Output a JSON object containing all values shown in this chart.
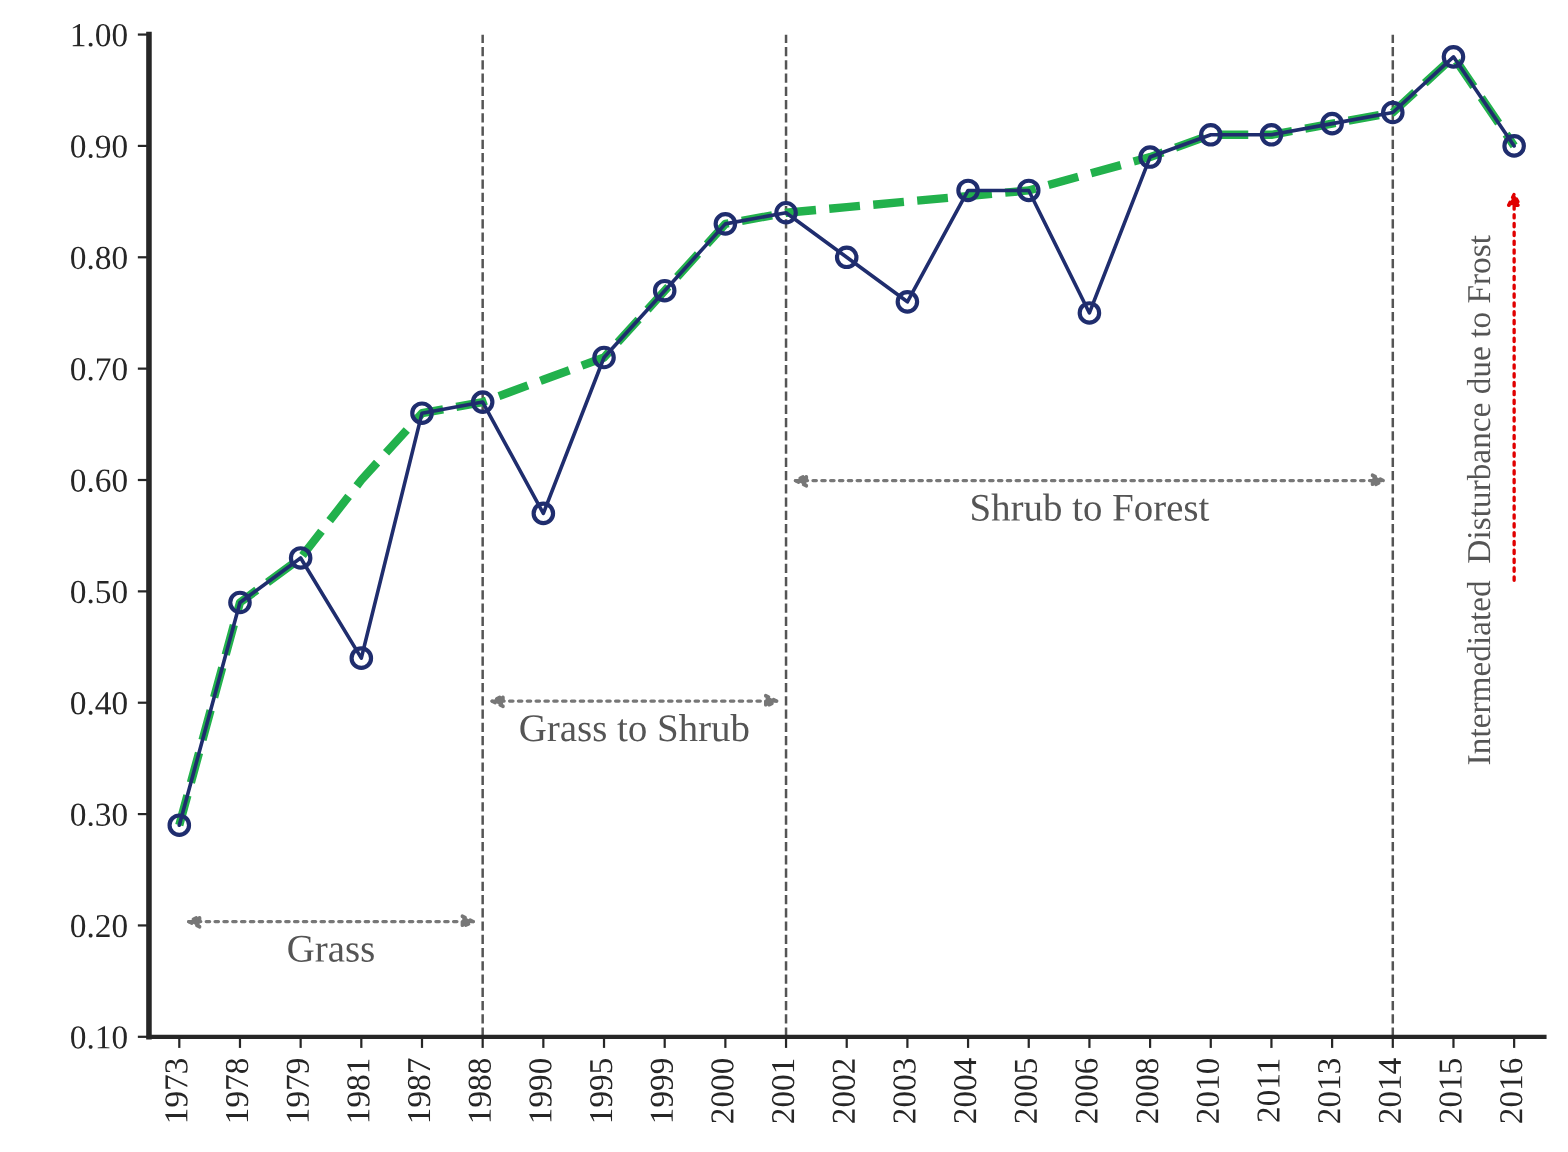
{
  "chart_data": {
    "type": "line",
    "categories": [
      "1973",
      "1978",
      "1979",
      "1981",
      "1987",
      "1988",
      "1990",
      "1995",
      "1999",
      "2000",
      "2001",
      "2002",
      "2003",
      "2004",
      "2005",
      "2006",
      "2008",
      "2010",
      "2011",
      "2013",
      "2014",
      "2015",
      "2016"
    ],
    "series": [
      {
        "color": "#1f2d6e",
        "marker": "circle",
        "line_style": "solid",
        "values": [
          0.29,
          0.49,
          0.53,
          0.44,
          0.66,
          0.67,
          0.57,
          0.71,
          0.77,
          0.83,
          0.84,
          0.8,
          0.76,
          0.86,
          0.86,
          0.75,
          0.89,
          0.91,
          0.91,
          0.92,
          0.93,
          0.98,
          0.9
        ]
      },
      {
        "color": "#22b14c",
        "marker": "none",
        "line_style": "dashed",
        "values": [
          0.29,
          0.49,
          0.53,
          0.6,
          0.66,
          0.67,
          0.69,
          0.71,
          0.77,
          0.83,
          0.84,
          0.845,
          0.85,
          0.855,
          0.86,
          0.875,
          0.89,
          0.91,
          0.91,
          0.92,
          0.93,
          0.98,
          0.9
        ]
      }
    ],
    "ylim": [
      0.1,
      1.0
    ],
    "yticks": [
      {
        "value": 0.1,
        "label": "0.10"
      },
      {
        "value": 0.2,
        "label": "0.20"
      },
      {
        "value": 0.3,
        "label": "0.30"
      },
      {
        "value": 0.4,
        "label": "0.40"
      },
      {
        "value": 0.5,
        "label": "0.50"
      },
      {
        "value": 0.6,
        "label": "0.60"
      },
      {
        "value": 0.7,
        "label": "0.70"
      },
      {
        "value": 0.8,
        "label": "0.80"
      },
      {
        "value": 0.9,
        "label": "0.90"
      },
      {
        "value": 1.0,
        "label": "1.00"
      }
    ],
    "ref_lines": [
      {
        "axis": "x",
        "value": "1988",
        "line_style": "dashed",
        "color": "#555555"
      },
      {
        "axis": "x",
        "value": "2001",
        "line_style": "dashed",
        "color": "#555555"
      },
      {
        "axis": "x",
        "value": "2014",
        "line_style": "dashed",
        "color": "#555555"
      }
    ],
    "annotations": [
      "Grass",
      "Grass to Shrub",
      "Shrub to Forest",
      "Intermediated  Disturbance due to Frost"
    ],
    "grid": false,
    "legend": false
  }
}
